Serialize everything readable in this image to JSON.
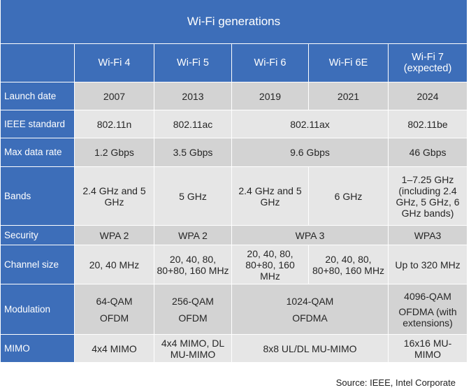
{
  "title": "Wi-Fi generations",
  "columns": [
    "Wi-Fi 4",
    "Wi-Fi 5",
    "Wi-Fi 6",
    "Wi-Fi 6E",
    "Wi-Fi 7\n(expected)"
  ],
  "rows": {
    "launch_date": {
      "label": "Launch date",
      "wifi4": "2007",
      "wifi5": "2013",
      "wifi6": "2019",
      "wifi6e": "2021",
      "wifi7": "2024"
    },
    "ieee_standard": {
      "label": "IEEE standard",
      "wifi4": "802.11n",
      "wifi5": "802.11ac",
      "wifi6_6e": "802.11ax",
      "wifi7": "802.11be"
    },
    "max_data_rate": {
      "label": "Max data rate",
      "wifi4": "1.2 Gbps",
      "wifi5": "3.5 Gbps",
      "wifi6_6e": "9.6 Gbps",
      "wifi7": "46 Gbps"
    },
    "bands": {
      "label": "Bands",
      "wifi4": "2.4 GHz and 5 GHz",
      "wifi5": "5 GHz",
      "wifi6": "2.4 GHz and 5 GHz",
      "wifi6e": "6 GHz",
      "wifi7": "1–7.25 GHz (including 2.4 GHz, 5 GHz, 6 GHz bands)"
    },
    "security": {
      "label": "Security",
      "wifi4": "WPA 2",
      "wifi5": "WPA 2",
      "wifi6_6e": "WPA 3",
      "wifi7": "WPA3"
    },
    "channel_size": {
      "label": "Channel size",
      "wifi4": "20, 40 MHz",
      "wifi5": "20, 40, 80, 80+80, 160 MHz",
      "wifi6": "20, 40, 80, 80+80, 160 MHz",
      "wifi6e": "20, 40, 80, 80+80, 160 MHz",
      "wifi7": "Up to 320 MHz"
    },
    "modulation": {
      "label": "Modulation",
      "wifi4_line1": "64-QAM",
      "wifi4_line2": "OFDM",
      "wifi5_line1": "256-QAM",
      "wifi5_line2": "OFDM",
      "wifi6_6e_line1": "1024-QAM",
      "wifi6_6e_line2": "OFDMA",
      "wifi7_line1": "4096-QAM",
      "wifi7_line2": "OFDMA (with extensions)"
    },
    "mimo": {
      "label": "MIMO",
      "wifi4": "4x4 MIMO",
      "wifi5": "4x4 MIMO, DL MU-MIMO",
      "wifi6_6e": "8x8 UL/DL MU-MIMO",
      "wifi7": "16x16 MU-MIMO"
    }
  },
  "source": "Source: IEEE, Intel Corporate"
}
